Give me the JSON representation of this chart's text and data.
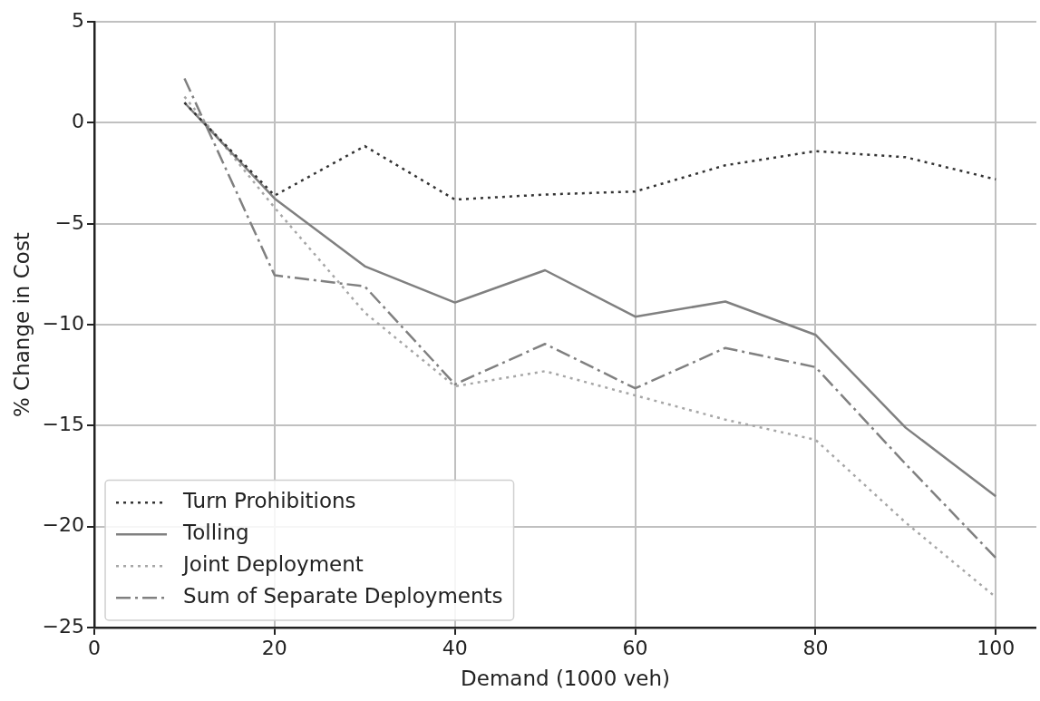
{
  "chart_data": {
    "type": "line",
    "xlabel": "Demand (1000 veh)",
    "ylabel": "% Change in Cost",
    "x": [
      10,
      20,
      30,
      40,
      50,
      60,
      70,
      80,
      90,
      100
    ],
    "series": [
      {
        "name": "Turn Prohibitions",
        "color": "#333333",
        "line_style": "dotted",
        "values": [
          1.0,
          -3.6,
          -1.15,
          -3.8,
          -3.55,
          -3.4,
          -2.1,
          -1.4,
          -1.7,
          -2.8
        ]
      },
      {
        "name": "Tolling",
        "color": "#808080",
        "line_style": "solid",
        "values": [
          1.0,
          -3.75,
          -7.1,
          -8.9,
          -7.3,
          -9.6,
          -8.85,
          -10.5,
          -15.1,
          -18.5
        ]
      },
      {
        "name": "Joint Deployment",
        "color": "#a6a6a6",
        "line_style": "dotted",
        "values": [
          1.3,
          -4.2,
          -9.4,
          -13.05,
          -12.3,
          -13.5,
          -14.7,
          -15.7,
          -19.8,
          -23.5
        ]
      },
      {
        "name": "Sum of Separate Deployments",
        "color": "#808080",
        "line_style": "dashdot",
        "values": [
          2.2,
          -7.55,
          -8.1,
          -12.95,
          -10.95,
          -13.15,
          -11.15,
          -12.1,
          -16.9,
          -21.55
        ]
      }
    ],
    "xlim": [
      0,
      104.5
    ],
    "ylim": [
      -25,
      5
    ],
    "xticks": [
      0,
      20,
      40,
      60,
      80,
      100
    ],
    "yticks": [
      -25,
      -20,
      -15,
      -10,
      -5,
      0,
      5
    ],
    "grid": true,
    "legend": "bottom left",
    "marker": "none"
  }
}
